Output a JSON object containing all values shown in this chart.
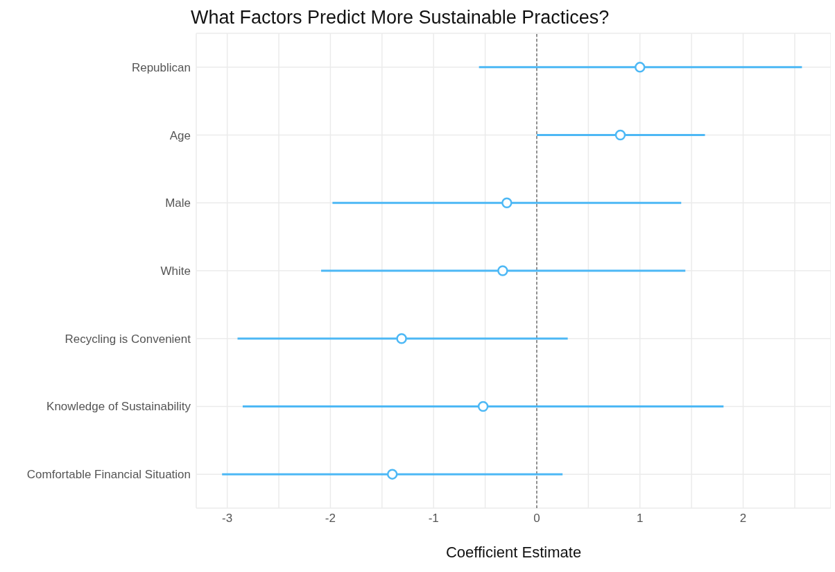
{
  "chart_data": {
    "type": "scatter",
    "orientation": "horizontal",
    "title": "What Factors Predict More Sustainable Practices?",
    "xlabel": "Coefficient Estimate",
    "categories": [
      "Republican",
      "Age",
      "Male",
      "White",
      "Recycling is Convenient",
      "Knowledge of Sustainability",
      "Comfortable Financial Situation"
    ],
    "values": [
      1.0,
      0.81,
      -0.29,
      -0.33,
      -1.31,
      -0.52,
      -1.4
    ],
    "errors": [
      [
        -0.56,
        2.57
      ],
      [
        0.0,
        1.63
      ],
      [
        -1.98,
        1.4
      ],
      [
        -2.09,
        1.44
      ],
      [
        -2.9,
        0.3
      ],
      [
        -2.85,
        1.81
      ],
      [
        -3.05,
        0.25
      ]
    ],
    "color": "#4db8f5",
    "marker": "circle",
    "xlim": [
      -3.3,
      2.85
    ],
    "xticks": [
      -3,
      {
        "value": -2.5,
        "label": null
      },
      -2,
      {
        "value": -1.5,
        "label": null
      },
      -1,
      {
        "value": -0.5,
        "label": null
      },
      0,
      {
        "value": 0.5,
        "label": null
      },
      1,
      {
        "value": 1.5,
        "label": null
      },
      2,
      {
        "value": 2.5,
        "label": null
      }
    ],
    "grid": true,
    "ref_lines": [
      {
        "axis": "x",
        "value": 0,
        "color": "#333333",
        "line_style": "dashed"
      }
    ]
  }
}
